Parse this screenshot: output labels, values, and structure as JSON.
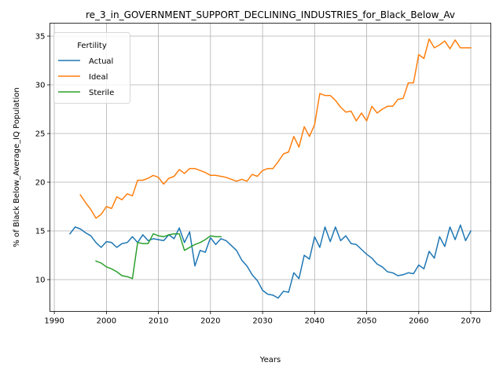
{
  "chart_data": {
    "type": "line",
    "title": "re_3_in_GOVERNMENT_SUPPORT_DECLINING_INDUSTRIES_for_Black_Below_Av",
    "xlabel": "Years",
    "ylabel": "% of Black Below_Average_IQ Population",
    "xlim": [
      1989.15,
      2073.85
    ],
    "ylim": [
      6.73,
      36.33
    ],
    "xticks": [
      1990,
      2000,
      2010,
      2020,
      2030,
      2040,
      2050,
      2060,
      2070
    ],
    "yticks": [
      10,
      15,
      20,
      25,
      30,
      35
    ],
    "grid": true,
    "legend": {
      "title": "Fertility",
      "placement": "top-left"
    },
    "series": [
      {
        "name": "Actual",
        "color": "#1f77b4",
        "x": [
          1993,
          1994,
          1995,
          1996,
          1997,
          1998,
          1999,
          2000,
          2001,
          2002,
          2003,
          2004,
          2005,
          2006,
          2007,
          2008,
          2009,
          2010,
          2011,
          2012,
          2013,
          2014,
          2015,
          2016,
          2017,
          2018,
          2019,
          2020,
          2021,
          2022,
          2023,
          2024,
          2025,
          2026,
          2027,
          2028,
          2029,
          2030,
          2031,
          2032,
          2033,
          2034,
          2035,
          2036,
          2037,
          2038,
          2039,
          2040,
          2041,
          2042,
          2043,
          2044,
          2045,
          2046,
          2047,
          2048,
          2049,
          2050,
          2051,
          2052,
          2053,
          2054,
          2055,
          2056,
          2057,
          2058,
          2059,
          2060,
          2061,
          2062,
          2063,
          2064,
          2065,
          2066,
          2067,
          2068,
          2069,
          2070
        ],
        "y": [
          14.7,
          15.4,
          15.2,
          14.8,
          14.5,
          13.8,
          13.3,
          13.9,
          13.8,
          13.3,
          13.7,
          13.8,
          14.4,
          13.8,
          14.6,
          14.0,
          14.2,
          14.1,
          14.0,
          14.6,
          14.2,
          15.3,
          13.8,
          14.9,
          11.4,
          13.0,
          12.8,
          14.3,
          13.6,
          14.2,
          14.0,
          13.5,
          13.0,
          12.0,
          11.4,
          10.5,
          9.9,
          8.9,
          8.5,
          8.4,
          8.1,
          8.8,
          8.7,
          10.7,
          10.1,
          12.5,
          12.1,
          14.4,
          13.3,
          15.4,
          13.9,
          15.4,
          14.0,
          14.5,
          13.7,
          13.6,
          13.1,
          12.6,
          12.2,
          11.6,
          11.3,
          10.8,
          10.7,
          10.4,
          10.5,
          10.7,
          10.6,
          11.5,
          11.1,
          12.9,
          12.2,
          14.4,
          13.4,
          15.4,
          14.1,
          15.6,
          14.0,
          15.0
        ]
      },
      {
        "name": "Ideal",
        "color": "#ff7f0e",
        "x": [
          1995,
          1996,
          1997,
          1998,
          1999,
          2000,
          2001,
          2002,
          2003,
          2004,
          2005,
          2006,
          2007,
          2008,
          2009,
          2010,
          2011,
          2012,
          2013,
          2014,
          2015,
          2016,
          2017,
          2018,
          2019,
          2020,
          2021,
          2022,
          2023,
          2024,
          2025,
          2026,
          2027,
          2028,
          2029,
          2030,
          2031,
          2032,
          2033,
          2034,
          2035,
          2036,
          2037,
          2038,
          2039,
          2040,
          2041,
          2042,
          2043,
          2044,
          2045,
          2046,
          2047,
          2048,
          2049,
          2050,
          2051,
          2052,
          2053,
          2054,
          2055,
          2056,
          2057,
          2058,
          2059,
          2060,
          2061,
          2062,
          2063,
          2064,
          2065,
          2066,
          2067,
          2068,
          2069,
          2070
        ],
        "y": [
          18.7,
          17.9,
          17.2,
          16.3,
          16.7,
          17.5,
          17.3,
          18.5,
          18.2,
          18.8,
          18.6,
          20.2,
          20.2,
          20.4,
          20.7,
          20.5,
          19.8,
          20.4,
          20.6,
          21.3,
          20.9,
          21.4,
          21.4,
          21.2,
          21.0,
          20.7,
          20.7,
          20.6,
          20.5,
          20.3,
          20.1,
          20.3,
          20.1,
          20.8,
          20.6,
          21.2,
          21.4,
          21.4,
          22.1,
          22.9,
          23.1,
          24.7,
          23.6,
          25.7,
          24.7,
          25.9,
          29.1,
          28.9,
          28.9,
          28.4,
          27.7,
          27.2,
          27.3,
          26.3,
          27.1,
          26.3,
          27.8,
          27.1,
          27.5,
          27.8,
          27.8,
          28.5,
          28.6,
          30.2,
          30.2,
          33.1,
          32.7,
          34.7,
          33.8,
          34.1,
          34.5,
          33.7,
          34.6,
          33.8,
          33.8,
          33.8
        ]
      },
      {
        "name": "Sterile",
        "color": "#2ca02c",
        "x": [
          1998,
          1999,
          2000,
          2001,
          2002,
          2003,
          2004,
          2005,
          2006,
          2007,
          2008,
          2009,
          2010,
          2011,
          2012,
          2013,
          2014,
          2015,
          2016,
          2017,
          2018,
          2019,
          2020,
          2021,
          2022
        ],
        "y": [
          11.9,
          11.7,
          11.3,
          11.1,
          10.8,
          10.4,
          10.3,
          10.1,
          13.8,
          13.7,
          13.7,
          14.7,
          14.5,
          14.4,
          14.6,
          14.7,
          14.7,
          13.0,
          13.3,
          13.6,
          13.8,
          14.1,
          14.5,
          14.4,
          14.4
        ]
      }
    ]
  }
}
